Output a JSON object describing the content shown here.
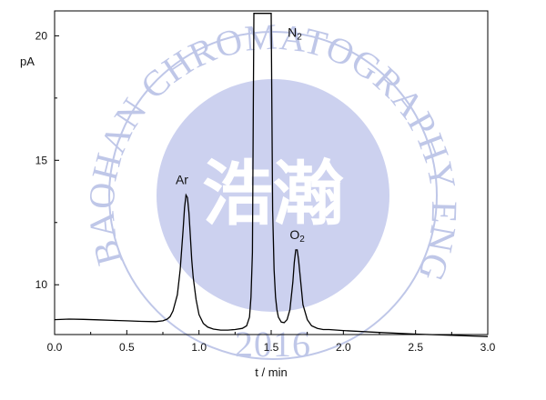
{
  "watermark": {
    "ring_text": "BAOHAN CHROMATOGRAPHY ENGINEERING",
    "center_text": "浩瀚",
    "year_text": "2016",
    "color": "#b9c1e6"
  },
  "chart_data": {
    "type": "line",
    "title": "",
    "xlabel": "t / min",
    "ylabel": "pA",
    "xlim": [
      0.0,
      3.0
    ],
    "ylim": [
      8.0,
      21.0
    ],
    "x_ticks": [
      "0.0",
      "0.5",
      "1.0",
      "1.5",
      "2.0",
      "2.5",
      "3.0"
    ],
    "y_ticks": [
      "10",
      "15",
      "20"
    ],
    "grid": false,
    "legend": "none",
    "series": [
      {
        "x": [
          0.0,
          0.1,
          0.2,
          0.3,
          0.4,
          0.5,
          0.6,
          0.7,
          0.75,
          0.78,
          0.8,
          0.82,
          0.85,
          0.87,
          0.89,
          0.9,
          0.91,
          0.92,
          0.93,
          0.94,
          0.95,
          0.96,
          0.98,
          1.0,
          1.03,
          1.06,
          1.1,
          1.15,
          1.2,
          1.25,
          1.3,
          1.33,
          1.35,
          1.36,
          1.37,
          1.38,
          1.5,
          1.51,
          1.52,
          1.53,
          1.54,
          1.55,
          1.57,
          1.59,
          1.61,
          1.63,
          1.65,
          1.66,
          1.67,
          1.68,
          1.69,
          1.7,
          1.72,
          1.75,
          1.78,
          1.82,
          1.86,
          1.9,
          2.0,
          2.2,
          2.5,
          2.8,
          3.0
        ],
        "y": [
          8.6,
          8.62,
          8.61,
          8.59,
          8.57,
          8.55,
          8.53,
          8.52,
          8.55,
          8.62,
          8.72,
          8.95,
          9.6,
          10.6,
          12.2,
          13.1,
          13.6,
          13.5,
          12.9,
          12.0,
          11.0,
          10.3,
          9.4,
          8.8,
          8.45,
          8.3,
          8.22,
          8.18,
          8.18,
          8.2,
          8.25,
          8.35,
          8.7,
          9.5,
          11.3,
          20.9,
          20.9,
          13.0,
          10.6,
          9.5,
          9.0,
          8.7,
          8.5,
          8.48,
          8.6,
          9.0,
          10.1,
          10.9,
          11.4,
          11.4,
          11.0,
          10.4,
          9.2,
          8.6,
          8.35,
          8.25,
          8.2,
          8.2,
          8.16,
          8.1,
          8.02,
          7.96,
          7.92
        ]
      }
    ],
    "annotations": [
      {
        "text": "Ar",
        "x": 0.92,
        "y": 13.6
      },
      {
        "text": "N2",
        "x": 1.5,
        "y": 20.9
      },
      {
        "text": "O2",
        "x": 1.68,
        "y": 11.4
      }
    ],
    "line_color": "#000000"
  }
}
